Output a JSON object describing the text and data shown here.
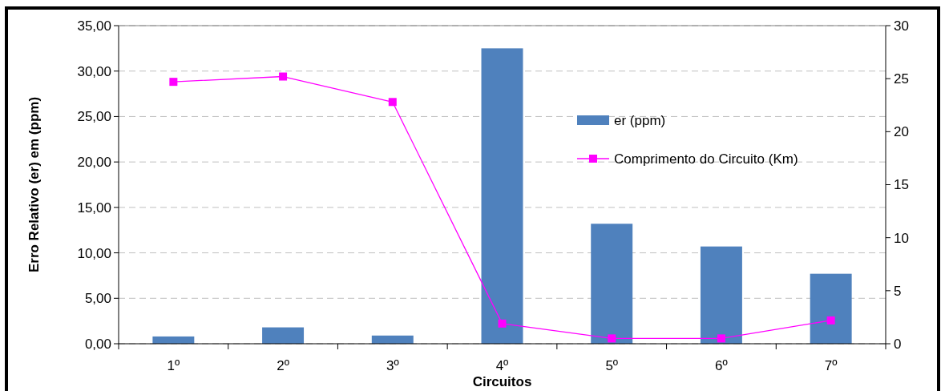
{
  "chart_data": {
    "type": "bar",
    "xlabel": "Circuitos",
    "ylabel": "Erro Relativo  (er) em (ppm)",
    "categories": [
      "1º",
      "2º",
      "3º",
      "4º",
      "5º",
      "6º",
      "7º"
    ],
    "series": [
      {
        "name": "er (ppm)",
        "color": "#4f81bd",
        "values": [
          0.8,
          1.8,
          0.9,
          32.5,
          13.2,
          10.7,
          7.7
        ]
      },
      {
        "name": "Comprimento do Circuito (Km)",
        "type": "line",
        "axis": "y2",
        "color": "#ff00ff",
        "marker": "square",
        "values": [
          24.7,
          25.2,
          22.8,
          1.9,
          0.5,
          0.5,
          2.2
        ]
      }
    ],
    "ylim": [
      0,
      35
    ],
    "yticks": [
      {
        "value": 0,
        "label": "0,00"
      },
      {
        "value": 5,
        "label": "5,00"
      },
      {
        "value": 10,
        "label": "10,00"
      },
      {
        "value": 15,
        "label": "15,00"
      },
      {
        "value": 20,
        "label": "20,00"
      },
      {
        "value": 25,
        "label": "25,00"
      },
      {
        "value": 30,
        "label": "30,00"
      },
      {
        "value": 35,
        "label": "35,00"
      }
    ],
    "y2lim": [
      0,
      30
    ],
    "y2ticks": [
      0,
      5,
      10,
      15,
      20,
      25,
      30
    ],
    "grid": "y",
    "legend": "right"
  }
}
